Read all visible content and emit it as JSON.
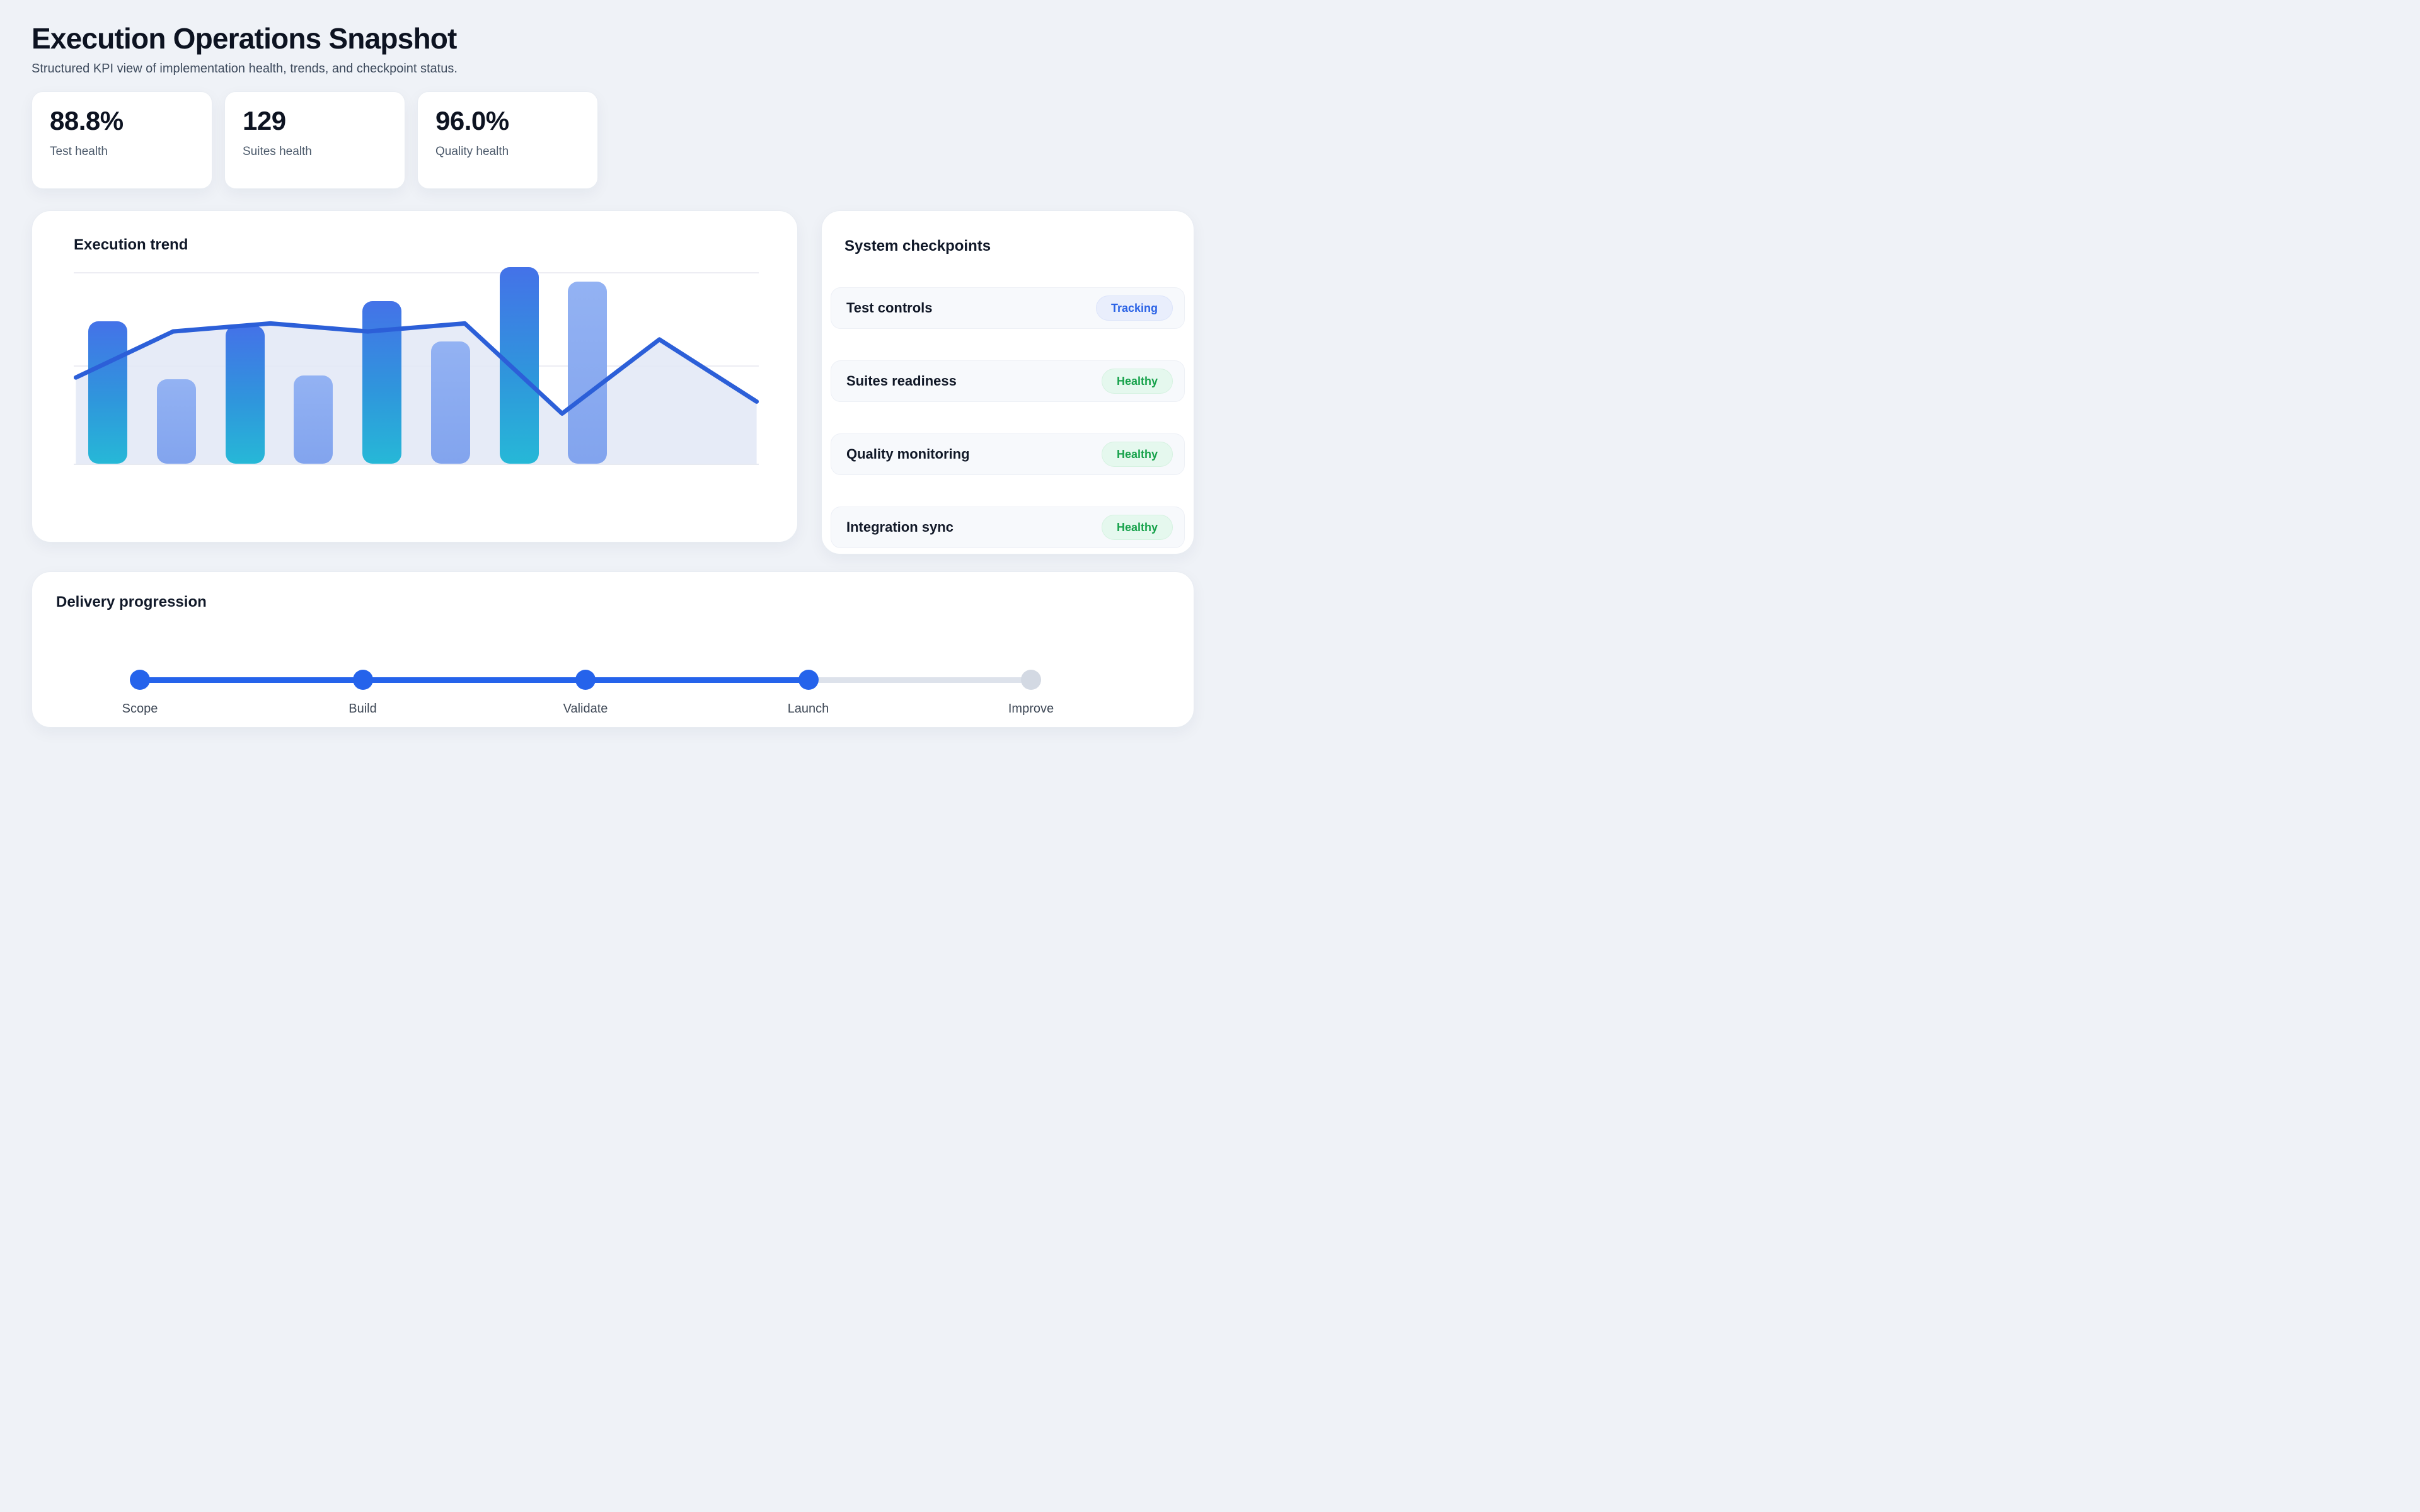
{
  "page": {
    "title": "Execution Operations Snapshot",
    "subtitle": "Structured KPI view of implementation health, trends, and checkpoint status."
  },
  "kpis": [
    {
      "value": "88.8%",
      "label": "Test health"
    },
    {
      "value": "129",
      "label": "Suites health"
    },
    {
      "value": "96.0%",
      "label": "Quality health"
    }
  ],
  "chart_data": {
    "type": "bar",
    "title": "Execution trend",
    "x_labels_visible": false,
    "ylim": [
      0,
      100
    ],
    "grid": true,
    "gridlines_pct": [
      48.5,
      95
    ],
    "bar_area_fraction": 0.8,
    "series": [
      {
        "name": "execution-volume",
        "type": "bar",
        "values": [
          71,
          42,
          69,
          44,
          81,
          61,
          98,
          91
        ],
        "styles": [
          "gradient",
          "light",
          "gradient",
          "light",
          "gradient",
          "light",
          "gradient",
          "light"
        ]
      },
      {
        "name": "execution-trend-line",
        "type": "line",
        "values": [
          43,
          66,
          70,
          66,
          70,
          25,
          62,
          31
        ]
      }
    ]
  },
  "checkpoints": {
    "title": "System checkpoints",
    "items": [
      {
        "label": "Test controls",
        "status": "Tracking",
        "variant": "tracking"
      },
      {
        "label": "Suites readiness",
        "status": "Healthy",
        "variant": "healthy"
      },
      {
        "label": "Quality monitoring",
        "status": "Healthy",
        "variant": "healthy"
      },
      {
        "label": "Integration sync",
        "status": "Healthy",
        "variant": "healthy"
      }
    ]
  },
  "delivery": {
    "title": "Delivery progression",
    "steps": [
      {
        "label": "Scope",
        "state": "complete"
      },
      {
        "label": "Build",
        "state": "complete"
      },
      {
        "label": "Validate",
        "state": "complete"
      },
      {
        "label": "Launch",
        "state": "complete"
      },
      {
        "label": "Improve",
        "state": "upcoming"
      }
    ],
    "completed_segments": 3,
    "total_segments": 4
  },
  "colors": {
    "bar_gradient_top": "#4472e8",
    "bar_gradient_bottom": "#26b8d7",
    "bar_light_top": "#93b2f3",
    "bar_light_bottom": "#82a4ee",
    "line": "#2c5fd8",
    "area_fill": "#e3e8f6",
    "step_complete": "#2563eb",
    "step_upcoming": "#d3d9e3",
    "track_remaining": "#dde2eb"
  }
}
